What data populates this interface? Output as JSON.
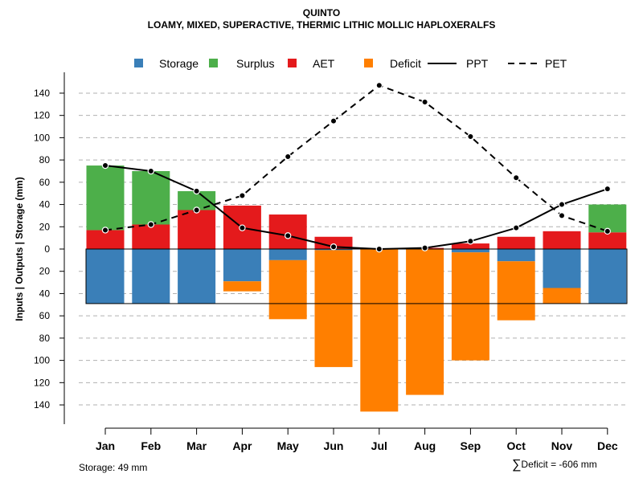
{
  "title": "QUINTO",
  "subtitle": "LOAMY, MIXED, SUPERACTIVE, THERMIC LITHIC MOLLIC HAPLOXERALFS",
  "footer": {
    "storage_text": "Storage: 49 mm",
    "deficit_symbol": "∑",
    "deficit_text": "Deficit = -606 mm"
  },
  "chart_data": {
    "type": "bar",
    "title": "QUINTO",
    "subtitle": "LOAMY, MIXED, SUPERACTIVE, THERMIC LITHIC MOLLIC HAPLOXERALFS",
    "ylabel": "Inputs | Outputs | Storage    (mm)",
    "xlabel": "",
    "ylim": [
      -150,
      150
    ],
    "yticks": [
      140,
      120,
      100,
      80,
      60,
      40,
      20,
      0,
      20,
      40,
      60,
      80,
      100,
      120,
      140
    ],
    "ytick_values": [
      140,
      120,
      100,
      80,
      60,
      40,
      20,
      0,
      -20,
      -40,
      -60,
      -80,
      -100,
      -120,
      -140
    ],
    "grid": true,
    "legend_position": "top",
    "legend": [
      {
        "label": "Storage",
        "type": "box",
        "color": "#3a7fb8"
      },
      {
        "label": "Surplus",
        "type": "box",
        "color": "#4daf4a"
      },
      {
        "label": "AET",
        "type": "box",
        "color": "#e41a1c"
      },
      {
        "label": "Deficit",
        "type": "box",
        "color": "#ff7f00"
      },
      {
        "label": "PPT",
        "type": "solid-line",
        "color": "#000000"
      },
      {
        "label": "PET",
        "type": "dashed-line",
        "color": "#000000"
      }
    ],
    "categories": [
      "Jan",
      "Feb",
      "Mar",
      "Apr",
      "May",
      "Jun",
      "Jul",
      "Aug",
      "Sep",
      "Oct",
      "Nov",
      "Dec"
    ],
    "stack_above": [
      {
        "name": "AET",
        "color": "#e41a1c",
        "values": [
          17,
          22,
          35,
          39,
          31,
          11,
          0,
          1,
          5,
          11,
          16,
          15
        ]
      },
      {
        "name": "Surplus",
        "color": "#4daf4a",
        "values": [
          58,
          48,
          17,
          0,
          0,
          0,
          0,
          0,
          0,
          0,
          0,
          25
        ]
      }
    ],
    "stack_below": [
      {
        "name": "Storage",
        "color": "#3a7fb8",
        "values": [
          49,
          49,
          49,
          29,
          10,
          1,
          0,
          0,
          3,
          11,
          35,
          49
        ]
      },
      {
        "name": "Deficit",
        "color": "#ff7f00",
        "values": [
          0,
          0,
          0,
          9,
          53,
          105,
          146,
          131,
          97,
          53,
          14,
          0
        ]
      }
    ],
    "storage_capacity": 49,
    "lines": [
      {
        "name": "PPT",
        "style": "solid",
        "color": "#000000",
        "values": [
          75,
          70,
          52,
          19,
          12,
          2,
          0,
          1,
          7,
          19,
          40,
          54
        ]
      },
      {
        "name": "PET",
        "style": "dashed",
        "color": "#000000",
        "values": [
          17,
          22,
          35,
          48,
          83,
          115,
          147,
          132,
          101,
          64,
          30,
          16
        ]
      }
    ]
  }
}
